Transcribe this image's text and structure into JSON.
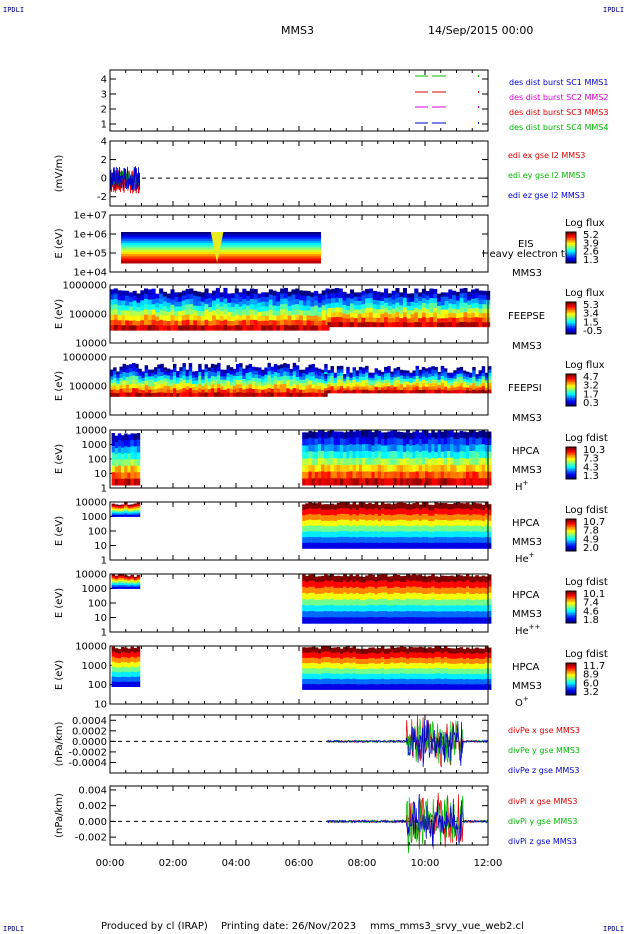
{
  "corners": {
    "top_left": "IPDLI",
    "top_right": "IPDLI",
    "bottom_left": "IPDLI",
    "bottom_right": "IPDLI"
  },
  "header": {
    "mission": "MMS3",
    "date": "14/Sep/2015 00:00"
  },
  "footer": {
    "produced": "Produced by cl (IRAP)",
    "printing": "Printing date: 26/Nov/2023",
    "file": "mms_mms3_srvy_vue_web2.cl"
  },
  "colors": {
    "red": "#dd0000",
    "green": "#00bb00",
    "blue": "#0000cc",
    "magenta": "#dd00dd",
    "spec_high": "#cc0000",
    "spec_low": "#0000cc"
  },
  "chart_data": [
    {
      "type": "line",
      "id": "burst",
      "yticks": [
        "1",
        "2",
        "3",
        "4"
      ],
      "ylim": [
        0.7,
        4.3
      ],
      "series": [
        {
          "name": "des dist burst SC1 MMS1",
          "color": "#0000cc"
        },
        {
          "name": "des dist burst SC2 MMS2",
          "color": "#dd00dd"
        },
        {
          "name": "des dist burst SC3 MMS3",
          "color": "#dd0000"
        },
        {
          "name": "des dist burst SC4 MMS4",
          "color": "#00bb00"
        }
      ]
    },
    {
      "type": "line",
      "id": "edi",
      "ylabel": "(mV/m)",
      "yticks": [
        "-2",
        "0",
        "2",
        "4"
      ],
      "ylim": [
        -3,
        4
      ],
      "series": [
        {
          "name": "edi ex gse l2 MMS3",
          "color": "#dd0000"
        },
        {
          "name": "edi ey gse l2 MMS3",
          "color": "#00bb00"
        },
        {
          "name": "edi ez gse l2 MMS3",
          "color": "#0000cc"
        }
      ]
    },
    {
      "type": "heatmap",
      "id": "eis",
      "ylabel": "E (eV)",
      "yticks": [
        "1e+04",
        "1e+05",
        "1e+06",
        "1e+07"
      ],
      "instrument": "EIS",
      "extra": "Heavy electron to",
      "sc": "MMS3",
      "cbar_title": "Log flux",
      "cbar_ticks": [
        "5.2",
        "3.9",
        "2.6",
        "1.3"
      ]
    },
    {
      "type": "heatmap",
      "id": "feepse",
      "ylabel": "E (eV)",
      "yticks": [
        "10000",
        "100000",
        "1000000"
      ],
      "instrument": "FEEPSE",
      "sc": "MMS3",
      "cbar_title": "Log flux",
      "cbar_ticks": [
        "5.3",
        "3.4",
        "1.5",
        "-0.5"
      ]
    },
    {
      "type": "heatmap",
      "id": "feepsi",
      "ylabel": "E (eV)",
      "yticks": [
        "10000",
        "100000",
        "1000000"
      ],
      "instrument": "FEEPSI",
      "sc": "MMS3",
      "cbar_title": "Log flux",
      "cbar_ticks": [
        "4.7",
        "3.2",
        "1.7",
        "0.3"
      ]
    },
    {
      "type": "heatmap",
      "id": "hpca_h",
      "ylabel": "E (eV)",
      "yticks": [
        "1",
        "10",
        "100",
        "1000",
        "10000"
      ],
      "instrument": "HPCA",
      "sc": "MMS3",
      "species": "H",
      "charge": "+",
      "cbar_title": "Log fdist",
      "cbar_ticks": [
        "10.3",
        "7.3",
        "4.3",
        "1.3"
      ]
    },
    {
      "type": "heatmap",
      "id": "hpca_he",
      "ylabel": "E (eV)",
      "yticks": [
        "1",
        "10",
        "100",
        "1000",
        "10000"
      ],
      "instrument": "HPCA",
      "sc": "MMS3",
      "species": "He",
      "charge": "+",
      "cbar_title": "Log fdist",
      "cbar_ticks": [
        "10.7",
        "7.8",
        "4.9",
        "2.0"
      ]
    },
    {
      "type": "heatmap",
      "id": "hpca_hepp",
      "ylabel": "E (eV)",
      "yticks": [
        "1",
        "10",
        "100",
        "1000",
        "10000"
      ],
      "instrument": "HPCA",
      "sc": "MMS3",
      "species": "He",
      "charge": "++",
      "cbar_title": "Log fdist",
      "cbar_ticks": [
        "10.1",
        "7.4",
        "4.6",
        "1.8"
      ]
    },
    {
      "type": "heatmap",
      "id": "hpca_o",
      "ylabel": "E (eV)",
      "yticks": [
        "10",
        "100",
        "1000",
        "10000"
      ],
      "instrument": "HPCA",
      "sc": "MMS3",
      "species": "O",
      "charge": "+",
      "cbar_title": "Log fdist",
      "cbar_ticks": [
        "11.7",
        "8.9",
        "6.0",
        "3.2"
      ]
    },
    {
      "type": "line",
      "id": "divpe",
      "ylabel": "(nPa/km)",
      "yticks": [
        "-0.0004",
        "-0.0002",
        "0.0000",
        "0.0002",
        "0.0004"
      ],
      "ylim": [
        -0.0006,
        0.0005
      ],
      "series": [
        {
          "name": "divPe x gse MMS3",
          "color": "#dd0000"
        },
        {
          "name": "divPe y gse MMS3",
          "color": "#00bb00"
        },
        {
          "name": "divPe z gse MMS3",
          "color": "#0000cc"
        }
      ]
    },
    {
      "type": "line",
      "id": "divpi",
      "ylabel": "(nPa/km)",
      "yticks": [
        "-0.002",
        "0.000",
        "0.002",
        "0.004"
      ],
      "ylim": [
        -0.003,
        0.0045
      ],
      "series": [
        {
          "name": "divPi x gse MMS3",
          "color": "#dd0000"
        },
        {
          "name": "divPi y gse MMS3",
          "color": "#00bb00"
        },
        {
          "name": "divPi z gse MMS3",
          "color": "#0000cc"
        }
      ]
    }
  ],
  "xaxis": {
    "ticks": [
      "00:00",
      "02:00",
      "04:00",
      "06:00",
      "08:00",
      "10:00",
      "12:00"
    ],
    "range_hours": [
      0,
      12
    ]
  }
}
